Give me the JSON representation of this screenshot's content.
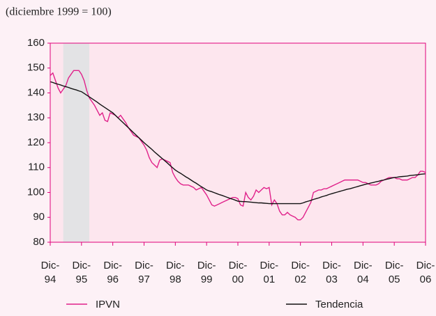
{
  "chart_data": {
    "type": "line",
    "subtitle": "(diciembre 1999 = 100)",
    "categories": [
      "Dic-94",
      null,
      null,
      null,
      null,
      null,
      null,
      null,
      null,
      null,
      null,
      null,
      "Dic-95",
      null,
      null,
      null,
      null,
      null,
      null,
      null,
      null,
      null,
      null,
      null,
      "Dic-96",
      null,
      null,
      null,
      null,
      null,
      null,
      null,
      null,
      null,
      null,
      null,
      "Dic-97",
      null,
      null,
      null,
      null,
      null,
      null,
      null,
      null,
      null,
      null,
      null,
      "Dic-98",
      null,
      null,
      null,
      null,
      null,
      null,
      null,
      null,
      null,
      null,
      null,
      "Dic-99",
      null,
      null,
      null,
      null,
      null,
      null,
      null,
      null,
      null,
      null,
      null,
      "Dic-00",
      null,
      null,
      null,
      null,
      null,
      null,
      null,
      null,
      null,
      null,
      null,
      "Dic-01",
      null,
      null,
      null,
      null,
      null,
      null,
      null,
      null,
      null,
      null,
      null,
      "Dic-02",
      null,
      null,
      null,
      null,
      null,
      null,
      null,
      null,
      null,
      null,
      null,
      "Dic-03",
      null,
      null,
      null,
      null,
      null,
      null,
      null,
      null,
      null,
      null,
      null,
      "Dic-04",
      null,
      null,
      null,
      null,
      null,
      null,
      null,
      null,
      null,
      null,
      null,
      "Dic-05",
      null,
      null,
      null,
      null,
      null,
      null,
      null,
      null,
      null,
      null,
      null,
      "Dic-06"
    ],
    "series": [
      {
        "name": "IPVN",
        "color": "#e0218a",
        "values": [
          147,
          148,
          145,
          142,
          140,
          141.5,
          143,
          146,
          147.5,
          149,
          149,
          149,
          147.5,
          145,
          141,
          138,
          136.5,
          135,
          133,
          131,
          132,
          129,
          128.5,
          132,
          131.5,
          131,
          130,
          131,
          129.5,
          128,
          126,
          124.5,
          123,
          122.5,
          122,
          120.5,
          119,
          117,
          114,
          112,
          111,
          110,
          113,
          113.5,
          113,
          112.5,
          112,
          108,
          106,
          104.5,
          103.5,
          103,
          103,
          103,
          102.5,
          102,
          101,
          101.5,
          102,
          100.5,
          99,
          97,
          95,
          94.5,
          95,
          95.5,
          96,
          96.5,
          97,
          97.5,
          98,
          98,
          97.5,
          95,
          94.5,
          100,
          98,
          97,
          98.5,
          101,
          100,
          101,
          102,
          101.5,
          102,
          95,
          97,
          95.5,
          92.5,
          91,
          91,
          92,
          91,
          90.5,
          90,
          89,
          89,
          90,
          92,
          94,
          96,
          100,
          100.5,
          101,
          101,
          101.5,
          101.5,
          102,
          102.5,
          103,
          103.5,
          104,
          104.5,
          105,
          105,
          105,
          105,
          105,
          105,
          104.5,
          104,
          104,
          103.5,
          103,
          103,
          103,
          103.5,
          104.5,
          105,
          105.5,
          106,
          106,
          106,
          105.5,
          105.5,
          105,
          105,
          105,
          105.5,
          106,
          106,
          107,
          108.5,
          108.5,
          108
        ]
      },
      {
        "name": "Tendencia",
        "color": "#111111",
        "values": [
          144.5,
          144.2,
          143.8,
          143.5,
          143.2,
          142.8,
          142.5,
          142.2,
          141.8,
          141.5,
          141.2,
          140.8,
          140.5,
          139.8,
          139.1,
          138.4,
          137.7,
          137,
          136.3,
          135.5,
          134.8,
          134.1,
          133.4,
          132.7,
          132,
          131,
          130,
          129,
          128,
          127,
          126,
          125,
          124,
          123,
          122,
          121,
          120,
          119.1,
          118.2,
          117.3,
          116.3,
          115.4,
          114.5,
          113.6,
          112.7,
          111.8,
          110.8,
          109.9,
          109,
          108.3,
          107.7,
          107,
          106.3,
          105.7,
          105,
          104.3,
          103.7,
          103,
          102.3,
          101.7,
          101,
          100.6,
          100.3,
          99.9,
          99.5,
          99.1,
          98.8,
          98.4,
          98,
          97.6,
          97.3,
          96.9,
          96.5,
          96.4,
          96.3,
          96.3,
          96.2,
          96.1,
          96,
          95.9,
          95.8,
          95.8,
          95.7,
          95.6,
          95.5,
          95.5,
          95.5,
          95.5,
          95.5,
          95.5,
          95.5,
          95.5,
          95.5,
          95.5,
          95.5,
          95.5,
          95.5,
          95.8,
          96.2,
          96.5,
          96.8,
          97.2,
          97.5,
          97.8,
          98.2,
          98.5,
          98.8,
          99.2,
          99.5,
          99.8,
          100.1,
          100.4,
          100.7,
          101,
          101.3,
          101.5,
          101.8,
          102.1,
          102.4,
          102.7,
          103,
          103.3,
          103.5,
          103.8,
          104,
          104.3,
          104.5,
          104.8,
          105,
          105.3,
          105.5,
          105.8,
          106,
          106.1,
          106.3,
          106.4,
          106.5,
          106.6,
          106.8,
          106.9,
          107,
          107.1,
          107.3,
          107.4,
          107.5
        ]
      }
    ],
    "shaded_period": [
      5,
      15
    ],
    "ylim": [
      80,
      160
    ],
    "yticks": [
      80,
      90,
      100,
      110,
      120,
      130,
      140,
      150,
      160
    ]
  }
}
